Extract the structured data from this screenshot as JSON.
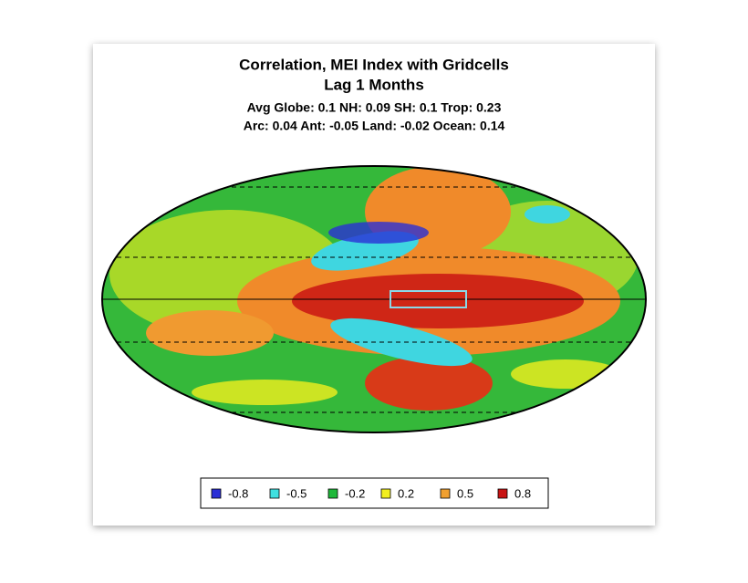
{
  "header": {
    "title": "Correlation, MEI Index with Gridcells",
    "subtitle": "Lag 1 Months",
    "stats": [
      "Avg Globe: 0.1  NH: 0.09  SH: 0.1  Trop: 0.23",
      "Arc: 0.04  Ant: -0.05  Land: -0.02 Ocean: 0.14"
    ]
  },
  "legend": {
    "items": [
      {
        "label": "-0.8",
        "color": "#2b2fd6"
      },
      {
        "label": "-0.5",
        "color": "#3fe0e0"
      },
      {
        "label": "-0.2",
        "color": "#1fb83a"
      },
      {
        "label": "0.2",
        "color": "#f2ef1e"
      },
      {
        "label": "0.5",
        "color": "#f0a030"
      },
      {
        "label": "0.8",
        "color": "#c81414"
      }
    ]
  }
}
